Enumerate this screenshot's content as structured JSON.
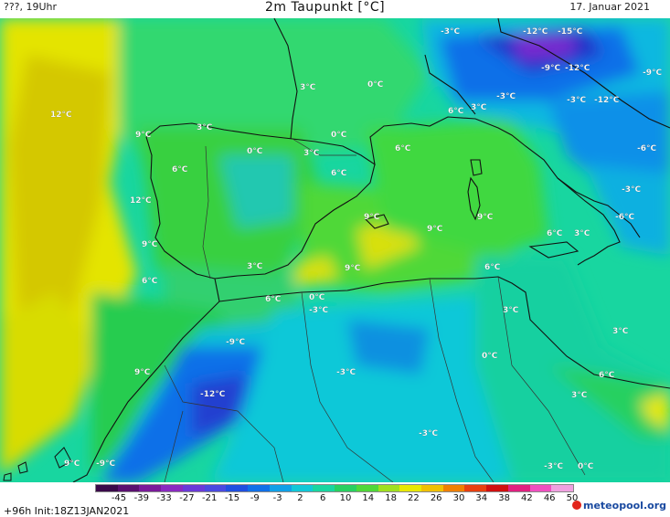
{
  "header": {
    "left": "???, 19Uhr",
    "title": "2m Taupunkt [°C]",
    "date": "17. Januar 2021"
  },
  "map": {
    "labels": [
      "12°C",
      "9°C",
      "3°C",
      "6°C",
      "12°C",
      "9°C",
      "6°C",
      "0°C",
      "3°C",
      "6°C",
      "3°C",
      "0°C",
      "0°C",
      "6°C",
      "3°C",
      "6°C",
      "9°C",
      "9°C",
      "9°C",
      "9°C",
      "3°C",
      "9°C",
      "6°C",
      "0°C",
      "-3°C",
      "-3°C",
      "-12°C",
      "-15°C",
      "-9°C",
      "-12°C",
      "-3°C",
      "-3°C",
      "-12°C",
      "-9°C",
      "-6°C",
      "-3°C",
      "-6°C",
      "6°C",
      "3°C",
      "6°C",
      "3°C",
      "3°C",
      "0°C",
      "6°C",
      "3°C",
      "-9°C",
      "-3°C",
      "-12°C",
      "9°C",
      "-3°C",
      "-3°C",
      "0°C",
      "-9°C"
    ],
    "colors": {
      "ocean_warm": "#e8e800",
      "ocean_yellow": "#d8d400",
      "land_green": "#28d040",
      "light_green": "#30e070",
      "teal": "#18d6a0",
      "cyan": "#10c8d8",
      "blue": "#1070e8",
      "deep_blue": "#2030c8",
      "purple": "#7a2ad0"
    }
  },
  "legend": {
    "ticks": [
      "-45",
      "-39",
      "-33",
      "-27",
      "-21",
      "-15",
      "-9",
      "-3",
      "2",
      "6",
      "10",
      "14",
      "18",
      "22",
      "26",
      "30",
      "34",
      "38",
      "42",
      "46",
      "50"
    ],
    "colors": [
      "#3a0a4a",
      "#5a1070",
      "#7a1a9a",
      "#8a2ac0",
      "#6a3ad8",
      "#4a4ae0",
      "#2050e0",
      "#1070e8",
      "#10a0e8",
      "#10c8d8",
      "#18d6a0",
      "#28d060",
      "#50d838",
      "#a0e020",
      "#e8e800",
      "#f0c000",
      "#f08000",
      "#e84010",
      "#d01010",
      "#e02080",
      "#f050c0",
      "#f0a0e0"
    ]
  },
  "footer": {
    "init": "+96h  Init:18Z13JAN2021",
    "logo": "meteopool.org"
  }
}
